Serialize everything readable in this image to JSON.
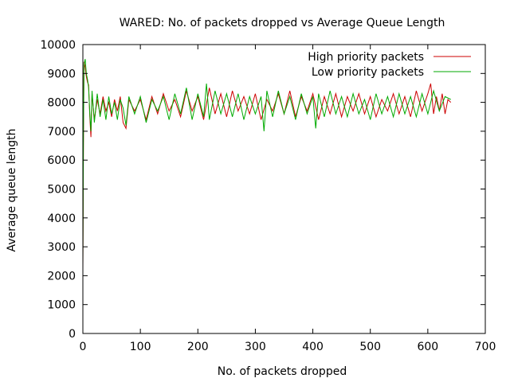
{
  "chart_data": {
    "type": "line",
    "title": "WARED: No. of packets dropped vs Average Queue Length",
    "xlabel": "No. of packets dropped",
    "ylabel": "Average queue length",
    "xlim": [
      0,
      700
    ],
    "ylim": [
      0,
      10000
    ],
    "x_ticks": [
      0,
      100,
      200,
      300,
      400,
      500,
      600,
      700
    ],
    "y_ticks": [
      0,
      1000,
      2000,
      3000,
      4000,
      5000,
      6000,
      7000,
      8000,
      9000,
      10000
    ],
    "grid": false,
    "legend_position": "top-right",
    "series": [
      {
        "name": "High priority packets",
        "color": "#cc0000",
        "points": [
          [
            0,
            2200
          ],
          [
            1,
            6500
          ],
          [
            2,
            9400
          ],
          [
            4,
            9200
          ],
          [
            6,
            8900
          ],
          [
            8,
            8700
          ],
          [
            10,
            8600
          ],
          [
            12,
            7500
          ],
          [
            14,
            6800
          ],
          [
            16,
            8300
          ],
          [
            20,
            7400
          ],
          [
            25,
            8100
          ],
          [
            30,
            7600
          ],
          [
            35,
            8200
          ],
          [
            40,
            7700
          ],
          [
            45,
            8000
          ],
          [
            50,
            7500
          ],
          [
            55,
            8100
          ],
          [
            60,
            7700
          ],
          [
            65,
            8200
          ],
          [
            70,
            7300
          ],
          [
            75,
            7100
          ],
          [
            80,
            8100
          ],
          [
            90,
            7700
          ],
          [
            100,
            8100
          ],
          [
            110,
            7400
          ],
          [
            120,
            8200
          ],
          [
            130,
            7600
          ],
          [
            140,
            8300
          ],
          [
            150,
            7700
          ],
          [
            160,
            8100
          ],
          [
            170,
            7500
          ],
          [
            180,
            8400
          ],
          [
            190,
            7700
          ],
          [
            200,
            8200
          ],
          [
            210,
            7400
          ],
          [
            220,
            8500
          ],
          [
            230,
            7600
          ],
          [
            240,
            8300
          ],
          [
            250,
            7500
          ],
          [
            260,
            8400
          ],
          [
            270,
            7700
          ],
          [
            280,
            8200
          ],
          [
            290,
            7600
          ],
          [
            300,
            8300
          ],
          [
            310,
            7400
          ],
          [
            320,
            8100
          ],
          [
            330,
            7700
          ],
          [
            340,
            8300
          ],
          [
            350,
            7600
          ],
          [
            360,
            8400
          ],
          [
            370,
            7500
          ],
          [
            380,
            8200
          ],
          [
            390,
            7700
          ],
          [
            400,
            8300
          ],
          [
            410,
            7400
          ],
          [
            420,
            8200
          ],
          [
            430,
            7600
          ],
          [
            440,
            8300
          ],
          [
            450,
            7500
          ],
          [
            460,
            8200
          ],
          [
            470,
            7700
          ],
          [
            480,
            8300
          ],
          [
            490,
            7600
          ],
          [
            500,
            8200
          ],
          [
            510,
            7500
          ],
          [
            520,
            8100
          ],
          [
            530,
            7700
          ],
          [
            540,
            8300
          ],
          [
            550,
            7600
          ],
          [
            560,
            8200
          ],
          [
            570,
            7500
          ],
          [
            580,
            8400
          ],
          [
            590,
            7700
          ],
          [
            600,
            8300
          ],
          [
            605,
            8650
          ],
          [
            610,
            7600
          ],
          [
            615,
            8200
          ],
          [
            620,
            7700
          ],
          [
            625,
            8300
          ],
          [
            630,
            7600
          ],
          [
            635,
            8100
          ],
          [
            640,
            8000
          ]
        ]
      },
      {
        "name": "Low priority packets",
        "color": "#00aa00",
        "points": [
          [
            0,
            2400
          ],
          [
            1,
            7000
          ],
          [
            2,
            9300
          ],
          [
            4,
            9500
          ],
          [
            6,
            9000
          ],
          [
            8,
            8800
          ],
          [
            10,
            8500
          ],
          [
            12,
            7600
          ],
          [
            14,
            7000
          ],
          [
            16,
            8400
          ],
          [
            20,
            7300
          ],
          [
            25,
            8300
          ],
          [
            30,
            7500
          ],
          [
            35,
            8100
          ],
          [
            40,
            7400
          ],
          [
            45,
            8200
          ],
          [
            50,
            7600
          ],
          [
            55,
            8000
          ],
          [
            60,
            7400
          ],
          [
            65,
            8100
          ],
          [
            70,
            7800
          ],
          [
            75,
            7200
          ],
          [
            80,
            8200
          ],
          [
            90,
            7600
          ],
          [
            100,
            8200
          ],
          [
            110,
            7300
          ],
          [
            120,
            8100
          ],
          [
            130,
            7700
          ],
          [
            140,
            8200
          ],
          [
            150,
            7400
          ],
          [
            160,
            8300
          ],
          [
            170,
            7600
          ],
          [
            180,
            8500
          ],
          [
            190,
            7400
          ],
          [
            200,
            8300
          ],
          [
            210,
            7500
          ],
          [
            215,
            8650
          ],
          [
            220,
            7400
          ],
          [
            230,
            8400
          ],
          [
            240,
            7600
          ],
          [
            250,
            8300
          ],
          [
            260,
            7500
          ],
          [
            270,
            8300
          ],
          [
            280,
            7400
          ],
          [
            290,
            8200
          ],
          [
            300,
            7600
          ],
          [
            310,
            8200
          ],
          [
            315,
            7000
          ],
          [
            320,
            8400
          ],
          [
            330,
            7500
          ],
          [
            340,
            8400
          ],
          [
            350,
            7600
          ],
          [
            360,
            8200
          ],
          [
            370,
            7400
          ],
          [
            380,
            8300
          ],
          [
            390,
            7600
          ],
          [
            400,
            8200
          ],
          [
            405,
            7100
          ],
          [
            410,
            8300
          ],
          [
            420,
            7500
          ],
          [
            430,
            8400
          ],
          [
            440,
            7600
          ],
          [
            450,
            8200
          ],
          [
            460,
            7500
          ],
          [
            470,
            8300
          ],
          [
            480,
            7600
          ],
          [
            490,
            8100
          ],
          [
            500,
            7400
          ],
          [
            510,
            8300
          ],
          [
            520,
            7600
          ],
          [
            530,
            8200
          ],
          [
            540,
            7500
          ],
          [
            550,
            8300
          ],
          [
            560,
            7600
          ],
          [
            570,
            8200
          ],
          [
            580,
            7500
          ],
          [
            590,
            8300
          ],
          [
            600,
            7600
          ],
          [
            610,
            8400
          ],
          [
            620,
            7700
          ],
          [
            630,
            8200
          ],
          [
            640,
            8100
          ]
        ]
      }
    ]
  }
}
